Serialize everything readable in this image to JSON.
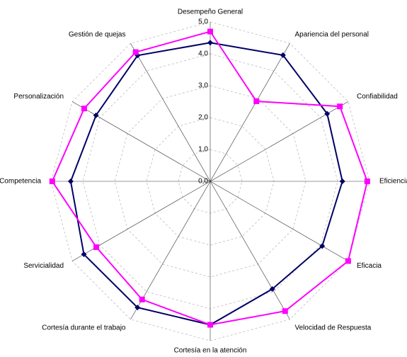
{
  "chart_data": {
    "type": "radar",
    "categories": [
      "Desempeño General",
      "Apariencia del personal",
      "Confiabilidad",
      "Eficiencia",
      "Eficacia",
      "Velocidad de Respuesta",
      "Cortesía en la atención",
      "Cortesía durante el trabajo",
      "Servicialidad",
      "Competencia",
      "Personalización",
      "Gestión de quejas"
    ],
    "series": [
      {
        "color": "#000066",
        "marker": "diamond",
        "values": [
          4.35,
          4.57,
          4.24,
          4.15,
          4.06,
          3.9,
          4.5,
          4.57,
          4.58,
          4.38,
          4.14,
          4.56
        ]
      },
      {
        "color": "#ff00ff",
        "marker": "square",
        "values": [
          4.7,
          2.9,
          4.7,
          4.93,
          5.0,
          4.7,
          4.5,
          4.28,
          4.13,
          4.96,
          4.57,
          4.68
        ]
      }
    ],
    "ylim": [
      0,
      5
    ],
    "yticks": [
      {
        "value": 0,
        "label": "0,0"
      },
      {
        "value": 1,
        "label": "1,0"
      },
      {
        "value": 2,
        "label": "2,0"
      },
      {
        "value": 3,
        "label": "3,0"
      },
      {
        "value": 4,
        "label": "4,0"
      },
      {
        "value": 5,
        "label": "5,0"
      }
    ],
    "grid": true
  }
}
